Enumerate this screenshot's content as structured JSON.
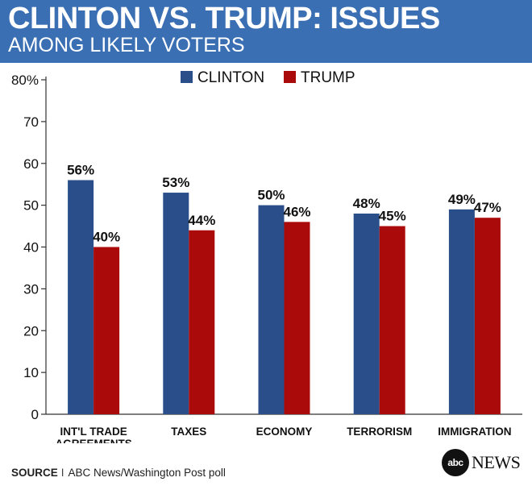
{
  "header": {
    "title": "CLINTON VS. TRUMP: ISSUES",
    "subtitle": "AMONG LIKELY VOTERS"
  },
  "footer": {
    "source_label": "SOURCE",
    "separator": "I",
    "source_text": "ABC News/Washington Post poll",
    "logo_circle": "abc",
    "logo_word": "NEWS"
  },
  "colors": {
    "header_bg": "#3b6fb3",
    "clinton": "#2a4e8a",
    "trump": "#ab0a0a"
  },
  "chart_data": {
    "type": "bar",
    "title": "CLINTON VS. TRUMP: ISSUES",
    "subtitle": "AMONG LIKELY VOTERS",
    "categories": [
      [
        "INT'L TRADE",
        "AGREEMENTS"
      ],
      [
        "TAXES"
      ],
      [
        "ECONOMY"
      ],
      [
        "TERRORISM"
      ],
      [
        "IMMIGRATION"
      ]
    ],
    "series": [
      {
        "name": "CLINTON",
        "values": [
          56,
          53,
          50,
          48,
          49
        ],
        "labels": [
          "56%",
          "53%",
          "50%",
          "48%",
          "49%"
        ],
        "color": "#2a4e8a"
      },
      {
        "name": "TRUMP",
        "values": [
          40,
          44,
          46,
          45,
          47
        ],
        "labels": [
          "40%",
          "44%",
          "46%",
          "45%",
          "47%"
        ],
        "color": "#ab0a0a"
      }
    ],
    "yticks": [
      "0",
      "10",
      "20",
      "30",
      "40",
      "50",
      "60",
      "70",
      "80%"
    ],
    "ylim": [
      0,
      80
    ],
    "grid": false,
    "legend_position": "top-center"
  }
}
